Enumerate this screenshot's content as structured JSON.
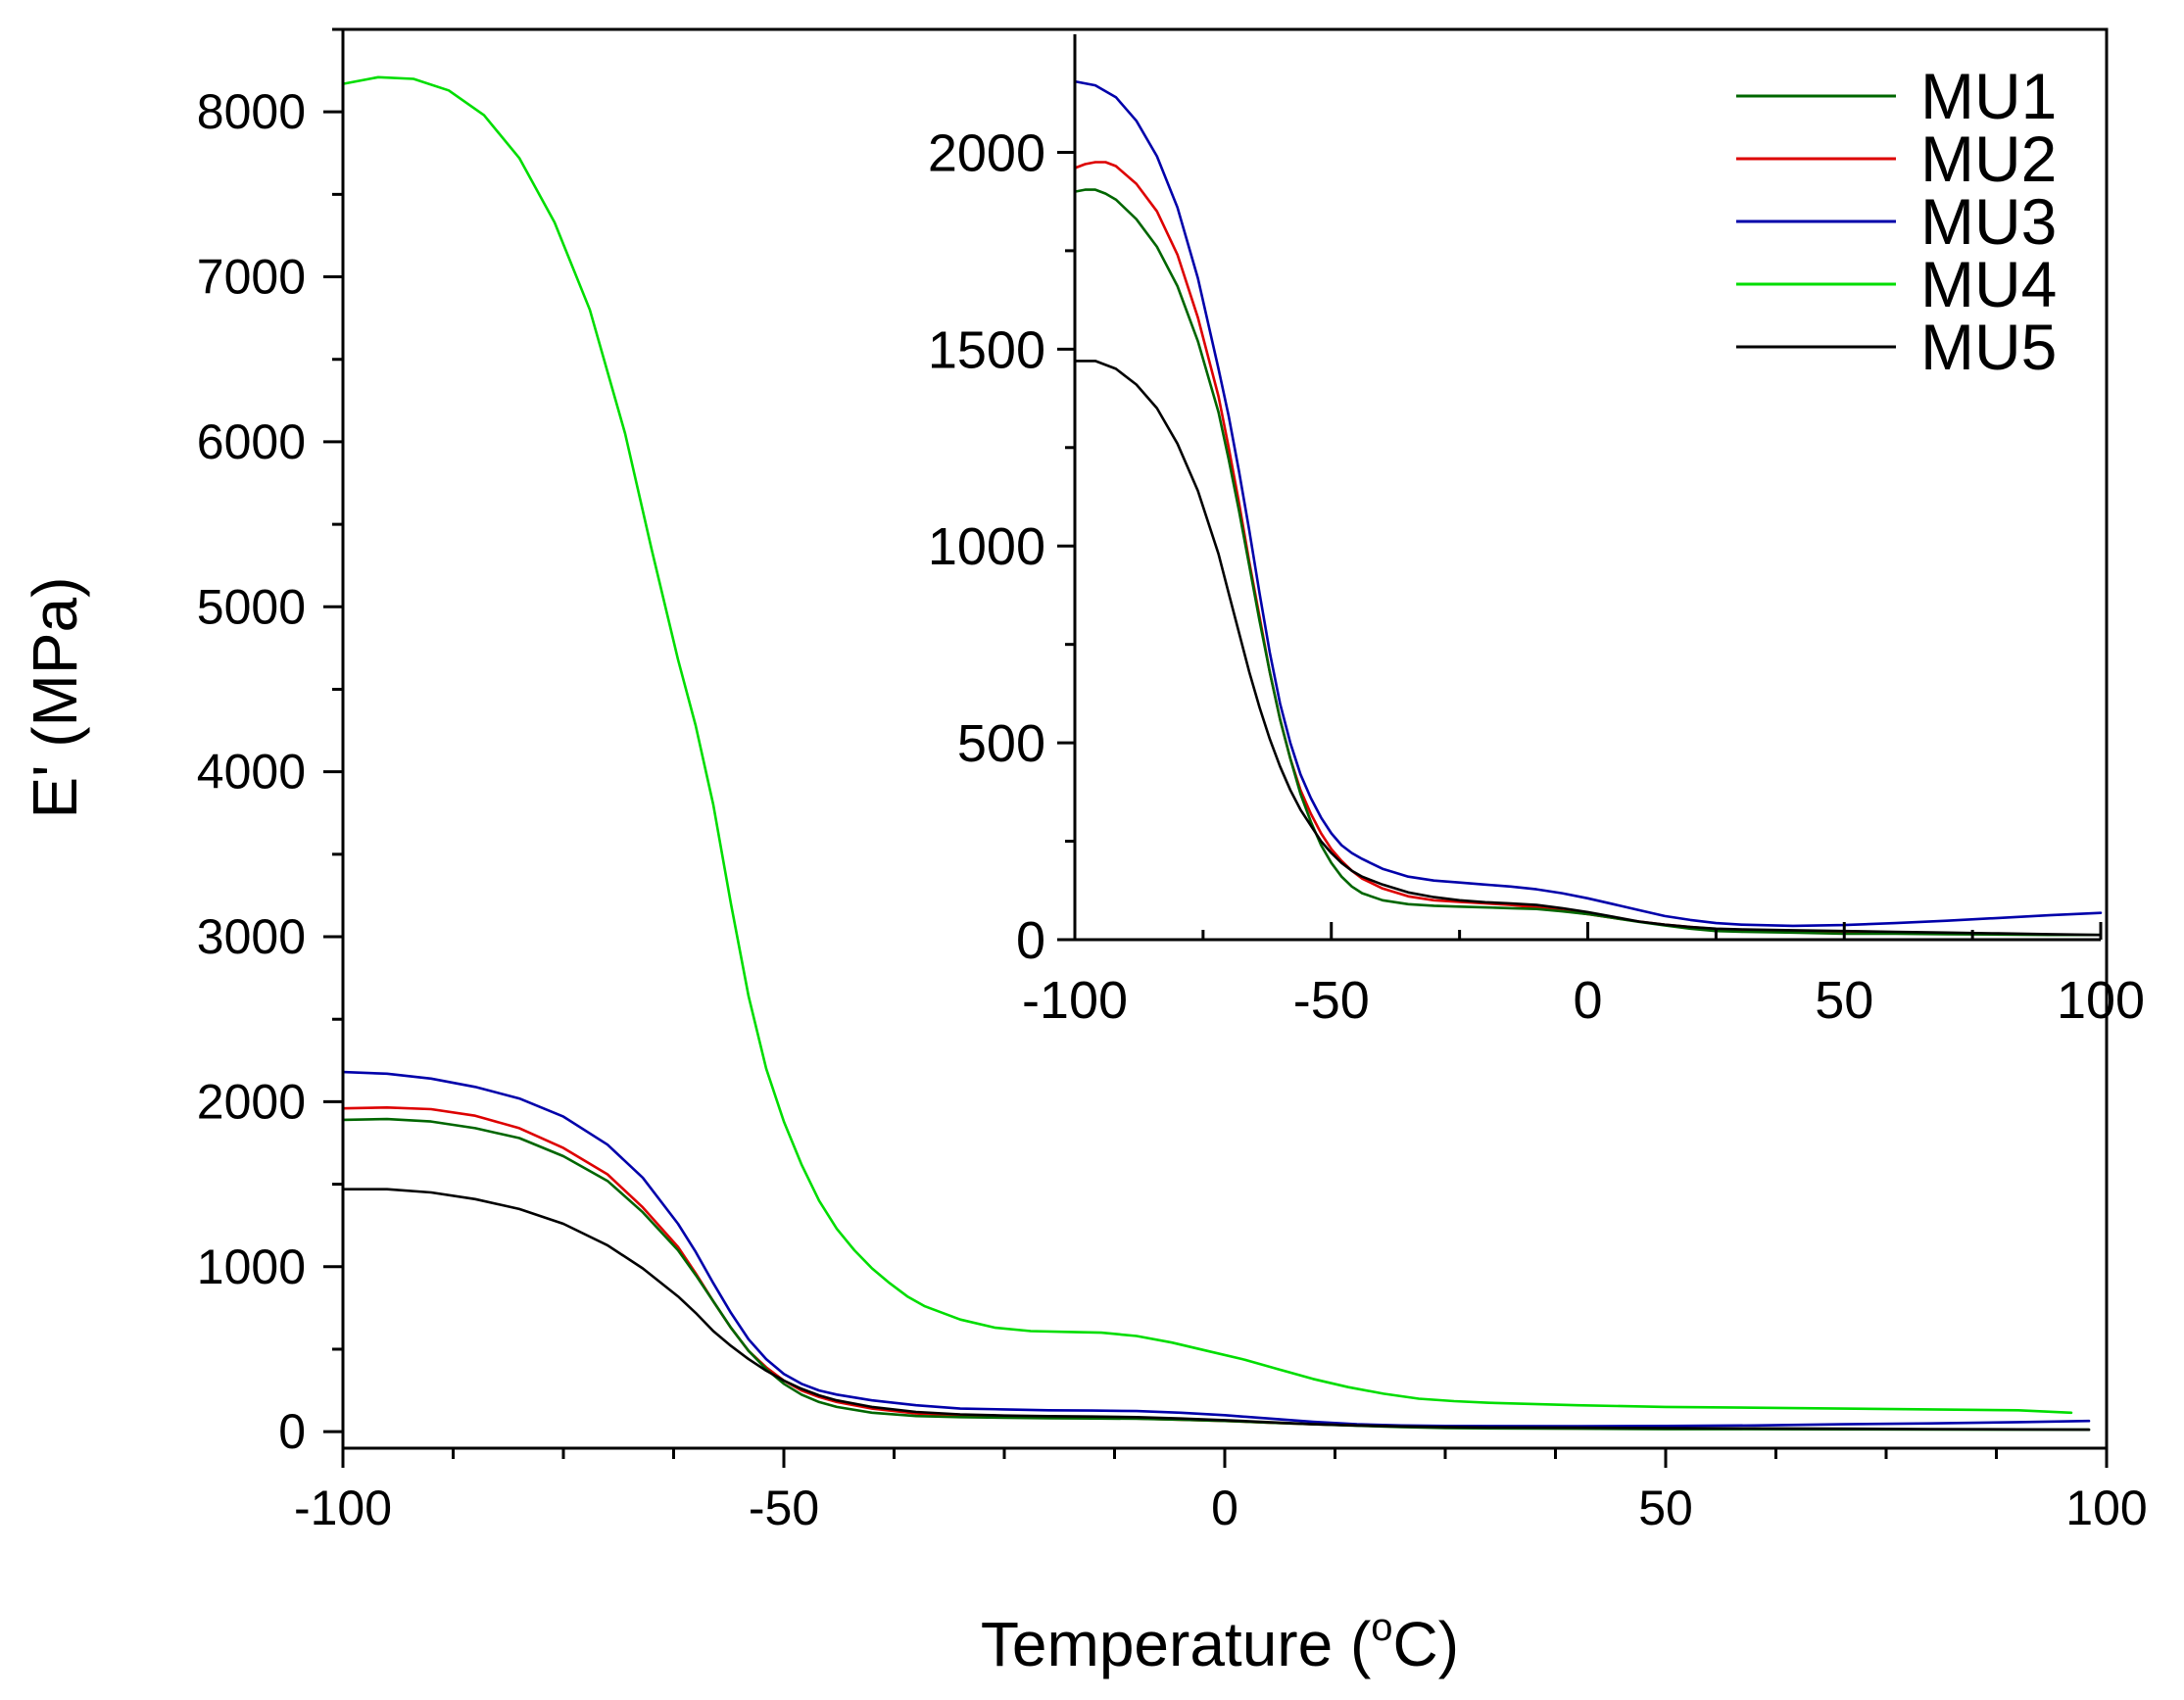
{
  "chart_data": [
    {
      "type": "line",
      "role": "main",
      "title": "",
      "xlabel": "Temperature (",
      "xlabel_sup": "o",
      "xlabel_suffix": "C)",
      "ylabel": "E' (MPa)",
      "xlim": [
        -100,
        100
      ],
      "ylim": [
        -100,
        8500
      ],
      "xticks": [
        -100,
        -50,
        0,
        50,
        100
      ],
      "xtick_labels": [
        "-100",
        "-50",
        "0",
        "50",
        "100"
      ],
      "yticks": [
        0,
        1000,
        2000,
        3000,
        4000,
        5000,
        6000,
        7000,
        8000
      ],
      "ytick_labels": [
        "0",
        "1000",
        "2000",
        "3000",
        "4000",
        "5000",
        "6000",
        "7000",
        "8000"
      ],
      "series": [
        {
          "name": "MU4",
          "color": "#00dd00",
          "x": [
            -100,
            -96,
            -92,
            -88,
            -84,
            -80,
            -76,
            -72,
            -68,
            -65,
            -62,
            -60,
            -58,
            -56,
            -54,
            -52,
            -50,
            -48,
            -46,
            -44,
            -42,
            -40,
            -38,
            -36,
            -34,
            -30,
            -26,
            -22,
            -18,
            -14,
            -10,
            -6,
            -2,
            2,
            6,
            10,
            14,
            18,
            22,
            26,
            30,
            40,
            50,
            60,
            70,
            80,
            90,
            96
          ],
          "values": [
            8170,
            8210,
            8200,
            8130,
            7980,
            7720,
            7330,
            6800,
            6050,
            5350,
            4680,
            4280,
            3800,
            3200,
            2640,
            2200,
            1880,
            1620,
            1400,
            1230,
            1100,
            990,
            900,
            820,
            760,
            680,
            630,
            610,
            605,
            600,
            580,
            540,
            490,
            440,
            380,
            320,
            270,
            230,
            200,
            185,
            175,
            160,
            150,
            145,
            140,
            135,
            130,
            115
          ]
        },
        {
          "name": "MU3",
          "color": "#0000aa",
          "x": [
            -100,
            -95,
            -90,
            -85,
            -80,
            -75,
            -70,
            -66,
            -62,
            -60,
            -58,
            -56,
            -54,
            -52,
            -50,
            -48,
            -46,
            -44,
            -40,
            -35,
            -30,
            -25,
            -20,
            -15,
            -10,
            -5,
            0,
            5,
            10,
            15,
            20,
            25,
            30,
            40,
            50,
            60,
            70,
            80,
            90,
            98
          ],
          "values": [
            2180,
            2170,
            2140,
            2090,
            2020,
            1910,
            1740,
            1540,
            1260,
            1090,
            900,
            720,
            560,
            440,
            350,
            290,
            250,
            225,
            190,
            160,
            140,
            135,
            130,
            128,
            125,
            115,
            100,
            80,
            60,
            45,
            38,
            35,
            34,
            33,
            35,
            38,
            45,
            50,
            58,
            65
          ]
        },
        {
          "name": "MU2",
          "color": "#dd0000",
          "x": [
            -100,
            -95,
            -90,
            -85,
            -80,
            -75,
            -70,
            -66,
            -62,
            -60,
            -58,
            -56,
            -54,
            -52,
            -50,
            -48,
            -46,
            -44,
            -40,
            -35,
            -30,
            -25,
            -20,
            -15,
            -10,
            -5,
            0,
            5,
            10,
            15,
            20,
            25,
            30,
            40,
            50,
            55
          ],
          "values": [
            1960,
            1965,
            1955,
            1915,
            1840,
            1720,
            1560,
            1360,
            1120,
            960,
            790,
            630,
            490,
            390,
            310,
            250,
            210,
            180,
            140,
            110,
            100,
            95,
            92,
            88,
            80,
            72,
            65,
            55,
            45,
            38,
            30,
            25,
            22,
            20,
            20,
            18
          ]
        },
        {
          "name": "MU1",
          "color": "#006600",
          "x": [
            -100,
            -95,
            -90,
            -85,
            -80,
            -75,
            -70,
            -66,
            -62,
            -60,
            -58,
            -56,
            -54,
            -52,
            -50,
            -48,
            -46,
            -44,
            -40,
            -35,
            -30,
            -25,
            -20,
            -15,
            -10,
            -5,
            0,
            5,
            10,
            15,
            20,
            25,
            30,
            40,
            50,
            60,
            70,
            80,
            90,
            98
          ],
          "values": [
            1890,
            1895,
            1880,
            1840,
            1780,
            1670,
            1520,
            1330,
            1100,
            950,
            790,
            630,
            490,
            380,
            290,
            225,
            180,
            150,
            115,
            95,
            88,
            84,
            82,
            80,
            78,
            72,
            65,
            55,
            45,
            36,
            28,
            22,
            20,
            18,
            15,
            15,
            14,
            13,
            12,
            12
          ]
        },
        {
          "name": "MU5",
          "color": "#000000",
          "x": [
            -100,
            -95,
            -90,
            -85,
            -80,
            -75,
            -70,
            -66,
            -62,
            -60,
            -58,
            -56,
            -54,
            -52,
            -50,
            -48,
            -46,
            -44,
            -40,
            -35,
            -30,
            -25,
            -20,
            -15,
            -10,
            -5,
            0,
            5,
            10,
            15,
            20,
            25,
            30,
            40,
            50,
            60,
            70,
            80,
            90,
            98
          ],
          "values": [
            1470,
            1470,
            1450,
            1410,
            1350,
            1260,
            1130,
            990,
            820,
            720,
            610,
            520,
            440,
            370,
            310,
            260,
            220,
            190,
            150,
            120,
            105,
            98,
            94,
            92,
            88,
            80,
            70,
            58,
            46,
            38,
            32,
            28,
            26,
            24,
            22,
            20,
            18,
            16,
            14,
            12
          ]
        }
      ]
    },
    {
      "type": "line",
      "role": "inset",
      "title": "",
      "xlabel": "",
      "ylabel": "",
      "xlim": [
        -100,
        100
      ],
      "ylim": [
        0,
        2250
      ],
      "xticks": [
        -100,
        -50,
        0,
        50,
        100
      ],
      "xtick_labels": [
        "-100",
        "-50",
        "0",
        "50",
        "100"
      ],
      "yticks": [
        0,
        500,
        1000,
        1500,
        2000
      ],
      "ytick_labels": [
        "0",
        "500",
        "1000",
        "1500",
        "2000"
      ],
      "legend_position": "top-right",
      "legend": [
        "MU1",
        "MU2",
        "MU3",
        "MU4",
        "MU5"
      ],
      "legend_colors": [
        "#006600",
        "#dd0000",
        "#0000aa",
        "#00dd00",
        "#000000"
      ],
      "series": [
        {
          "name": "MU3",
          "color": "#0000aa",
          "x": [
            -100,
            -96,
            -92,
            -88,
            -84,
            -80,
            -76,
            -72,
            -70,
            -68,
            -66,
            -64,
            -62,
            -60,
            -58,
            -56,
            -54,
            -52,
            -50,
            -48,
            -46,
            -44,
            -40,
            -35,
            -30,
            -25,
            -20,
            -15,
            -10,
            -5,
            0,
            5,
            10,
            15,
            20,
            25,
            30,
            40,
            50,
            60,
            70,
            80,
            90,
            100
          ],
          "values": [
            2180,
            2170,
            2140,
            2080,
            1990,
            1860,
            1680,
            1450,
            1330,
            1190,
            1040,
            880,
            730,
            600,
            500,
            420,
            360,
            310,
            270,
            240,
            220,
            205,
            180,
            160,
            150,
            145,
            140,
            135,
            128,
            118,
            105,
            90,
            75,
            60,
            50,
            42,
            38,
            35,
            37,
            42,
            48,
            55,
            62,
            68
          ]
        },
        {
          "name": "MU2",
          "color": "#dd0000",
          "x": [
            -100,
            -98,
            -96,
            -94,
            -92,
            -88,
            -84,
            -80,
            -76,
            -72,
            -70,
            -68,
            -66,
            -64,
            -62,
            -60,
            -58,
            -56,
            -54,
            -52,
            -50,
            -48,
            -46,
            -44,
            -40,
            -35,
            -30,
            -25,
            -20,
            -15,
            -10,
            -5,
            0,
            5,
            10,
            15,
            20,
            25,
            30,
            40,
            50,
            55
          ],
          "values": [
            1960,
            1970,
            1975,
            1975,
            1965,
            1920,
            1850,
            1740,
            1580,
            1380,
            1250,
            1110,
            960,
            820,
            680,
            560,
            460,
            380,
            320,
            270,
            230,
            200,
            175,
            155,
            130,
            110,
            100,
            96,
            92,
            88,
            82,
            74,
            65,
            55,
            46,
            38,
            32,
            27,
            24,
            21,
            20,
            18
          ]
        },
        {
          "name": "MU1",
          "color": "#006600",
          "x": [
            -100,
            -98,
            -96,
            -94,
            -92,
            -88,
            -84,
            -80,
            -76,
            -72,
            -70,
            -68,
            -66,
            -64,
            -62,
            -60,
            -58,
            -56,
            -54,
            -52,
            -50,
            -48,
            -46,
            -44,
            -40,
            -35,
            -30,
            -25,
            -20,
            -15,
            -10,
            -5,
            0,
            5,
            10,
            15,
            20,
            25,
            30,
            40,
            50,
            60,
            70,
            80,
            90,
            100
          ],
          "values": [
            1900,
            1905,
            1905,
            1895,
            1880,
            1830,
            1760,
            1660,
            1520,
            1340,
            1220,
            1090,
            950,
            810,
            680,
            560,
            460,
            370,
            300,
            240,
            195,
            160,
            135,
            118,
            100,
            90,
            86,
            84,
            82,
            80,
            78,
            72,
            65,
            55,
            45,
            36,
            28,
            22,
            20,
            18,
            15,
            15,
            14,
            13,
            12,
            12
          ]
        },
        {
          "name": "MU5",
          "color": "#000000",
          "x": [
            -100,
            -96,
            -92,
            -88,
            -84,
            -80,
            -76,
            -72,
            -70,
            -68,
            -66,
            -64,
            -62,
            -60,
            -58,
            -56,
            -54,
            -52,
            -50,
            -48,
            -46,
            -44,
            -40,
            -35,
            -30,
            -25,
            -20,
            -15,
            -10,
            -5,
            0,
            5,
            10,
            15,
            20,
            25,
            30,
            40,
            50,
            60,
            70,
            80,
            90,
            100
          ],
          "values": [
            1470,
            1470,
            1450,
            1410,
            1350,
            1260,
            1140,
            980,
            880,
            780,
            680,
            590,
            510,
            440,
            380,
            330,
            290,
            250,
            220,
            195,
            175,
            160,
            140,
            120,
            108,
            100,
            95,
            92,
            88,
            80,
            70,
            58,
            46,
            38,
            32,
            28,
            26,
            24,
            22,
            20,
            18,
            16,
            14,
            12
          ]
        }
      ]
    }
  ]
}
